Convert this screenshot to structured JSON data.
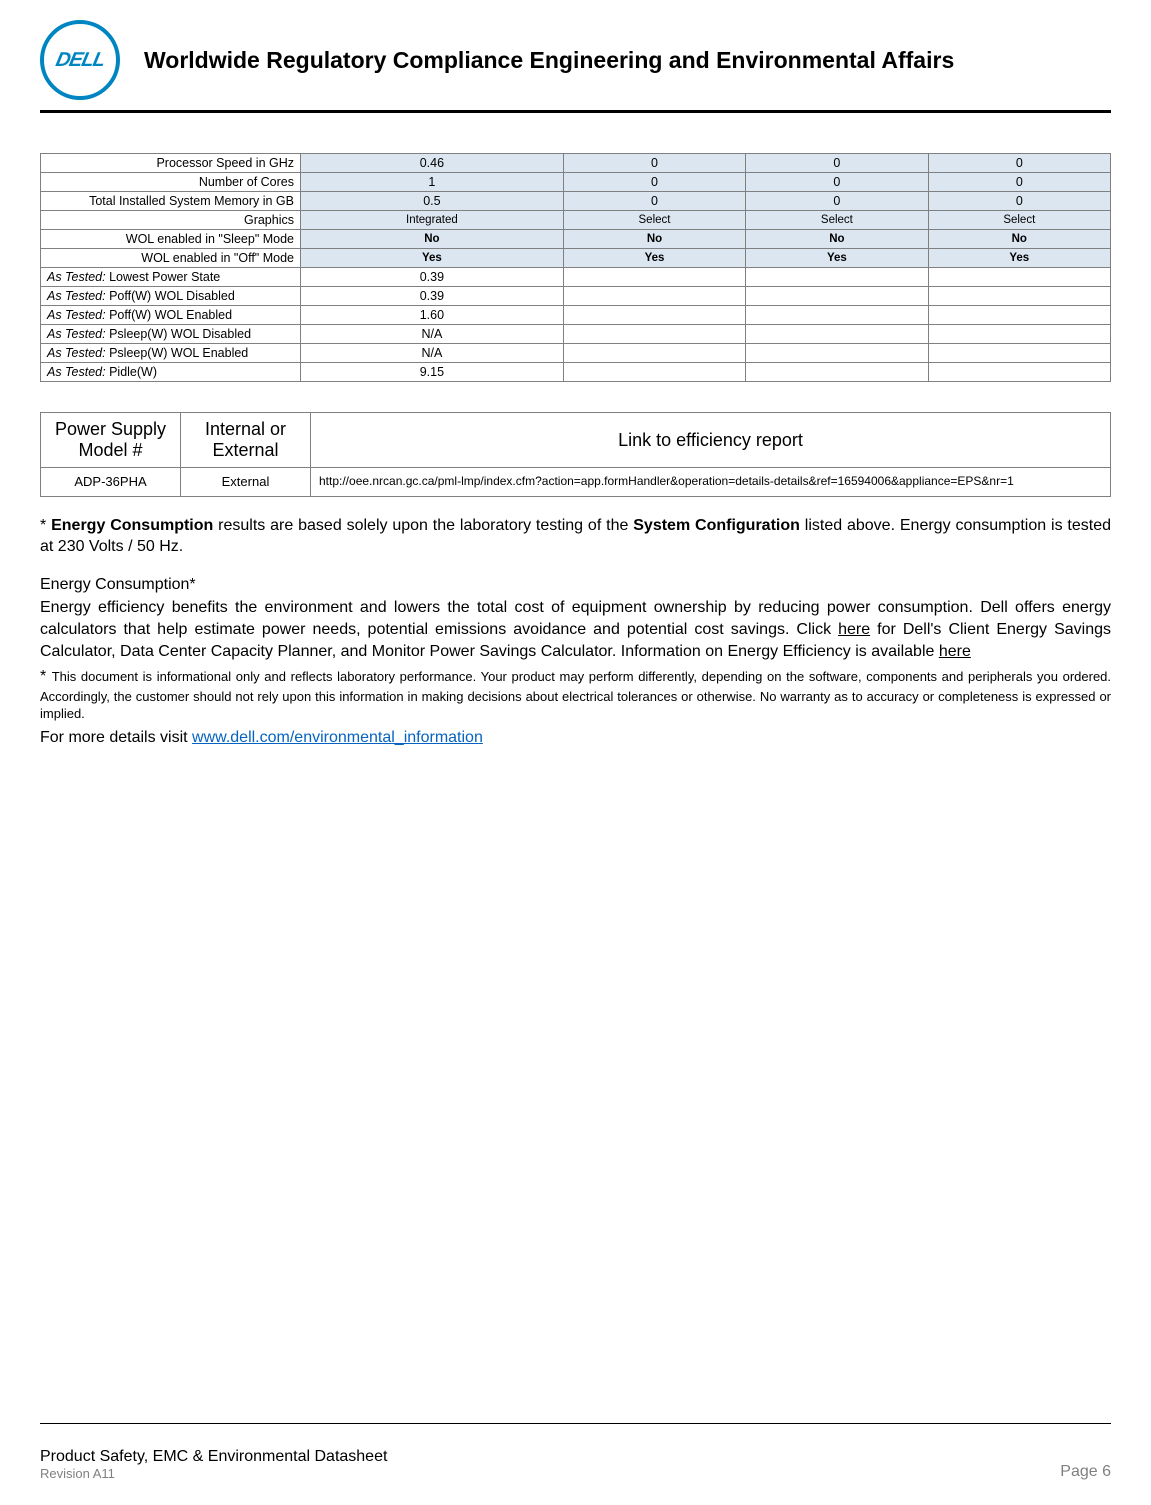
{
  "header": {
    "title": "Worldwide Regulatory Compliance Engineering and Environmental Affairs",
    "logo_text": "DELL",
    "logo_color": "#0085c3"
  },
  "spec_table": {
    "row_bg_blue": "#dce6f1",
    "border_color": "#808080",
    "rows": [
      {
        "label": "Processor Speed in GHz",
        "vals": [
          "0.46",
          "0",
          "0",
          "0"
        ],
        "blue": true,
        "bold": false
      },
      {
        "label": "Number of Cores",
        "vals": [
          "1",
          "0",
          "0",
          "0"
        ],
        "blue": true,
        "bold": false
      },
      {
        "label": "Total Installed System Memory in GB",
        "vals": [
          "0.5",
          "0",
          "0",
          "0"
        ],
        "blue": true,
        "bold": false
      },
      {
        "label": "Graphics",
        "vals": [
          "Integrated",
          "Select",
          "Select",
          "Select"
        ],
        "blue": true,
        "bold": false,
        "small": true
      },
      {
        "label": "WOL enabled in \"Sleep\" Mode",
        "vals": [
          "No",
          "No",
          "No",
          "No"
        ],
        "blue": true,
        "bold": true,
        "small": true
      },
      {
        "label": "WOL enabled in \"Off\" Mode",
        "vals": [
          "Yes",
          "Yes",
          "Yes",
          "Yes"
        ],
        "blue": true,
        "bold": true,
        "small": true
      },
      {
        "label_it": "As Tested:",
        "label_rest": "Lowest Power State",
        "vals": [
          "0.39",
          "",
          "",
          ""
        ],
        "blue": false
      },
      {
        "label_it": "As Tested:",
        "label_rest": "Poff(W) WOL Disabled",
        "vals": [
          "0.39",
          "",
          "",
          ""
        ],
        "blue": false
      },
      {
        "label_it": "As Tested:",
        "label_rest": "Poff(W) WOL Enabled",
        "vals": [
          "1.60",
          "",
          "",
          ""
        ],
        "blue": false
      },
      {
        "label_it": "As Tested:",
        "label_rest": "Psleep(W) WOL Disabled",
        "vals": [
          "N/A",
          "",
          "",
          ""
        ],
        "blue": false
      },
      {
        "label_it": "As Tested:",
        "label_rest": "Psleep(W) WOL Enabled",
        "vals": [
          "N/A",
          "",
          "",
          ""
        ],
        "blue": false
      },
      {
        "label_it": "As Tested:",
        "label_rest": "Pidle(W)",
        "vals": [
          "9.15",
          "",
          "",
          ""
        ],
        "blue": false
      }
    ]
  },
  "psu_table": {
    "headers": [
      "Power Supply Model #",
      "Internal or External",
      "Link to efficiency report"
    ],
    "row": {
      "model": "ADP-36PHA",
      "type": "External",
      "link": "http://oee.nrcan.gc.ca/pml-lmp/index.cfm?action=app.formHandler&operation=details-details&ref=16594006&appliance=EPS&nr=1"
    },
    "col_widths": [
      "140px",
      "130px",
      "auto"
    ]
  },
  "paragraphs": {
    "p1_prefix": "* ",
    "p1_bold1": "Energy Consumption",
    "p1_mid": " results are based solely upon the laboratory testing of the ",
    "p1_bold2": "System Configuration",
    "p1_end": " listed above. Energy consumption is tested at 230 Volts / 50 Hz.",
    "p2_title": "Energy Consumption*",
    "p2_body_a": "Energy efficiency benefits the environment and lowers the total cost of equipment ownership by reducing power consumption. Dell offers energy calculators that help estimate power needs, potential emissions avoidance and potential cost savings. Click ",
    "p2_here1": "here",
    "p2_body_b": " for Dell's Client Energy Savings Calculator, Data Center Capacity Planner, and Monitor Power Savings Calculator. Information on Energy Efficiency is available ",
    "p2_here2": "here",
    "note_star": "* ",
    "note": "This document is informational only and reflects laboratory performance. Your product may perform differently, depending on the software, components and peripherals you ordered.  Accordingly, the customer should not rely upon this information in making decisions about electrical tolerances or otherwise.  No warranty as to accuracy or completeness is expressed or implied.",
    "more": "For more details visit ",
    "more_link": "www.dell.com/environmental_information"
  },
  "footer": {
    "left": "Product Safety, EMC & Environmental Datasheet",
    "rev": "Revision A11",
    "page": "Page 6"
  },
  "colors": {
    "link": "#0563c1",
    "grey": "#808080"
  }
}
